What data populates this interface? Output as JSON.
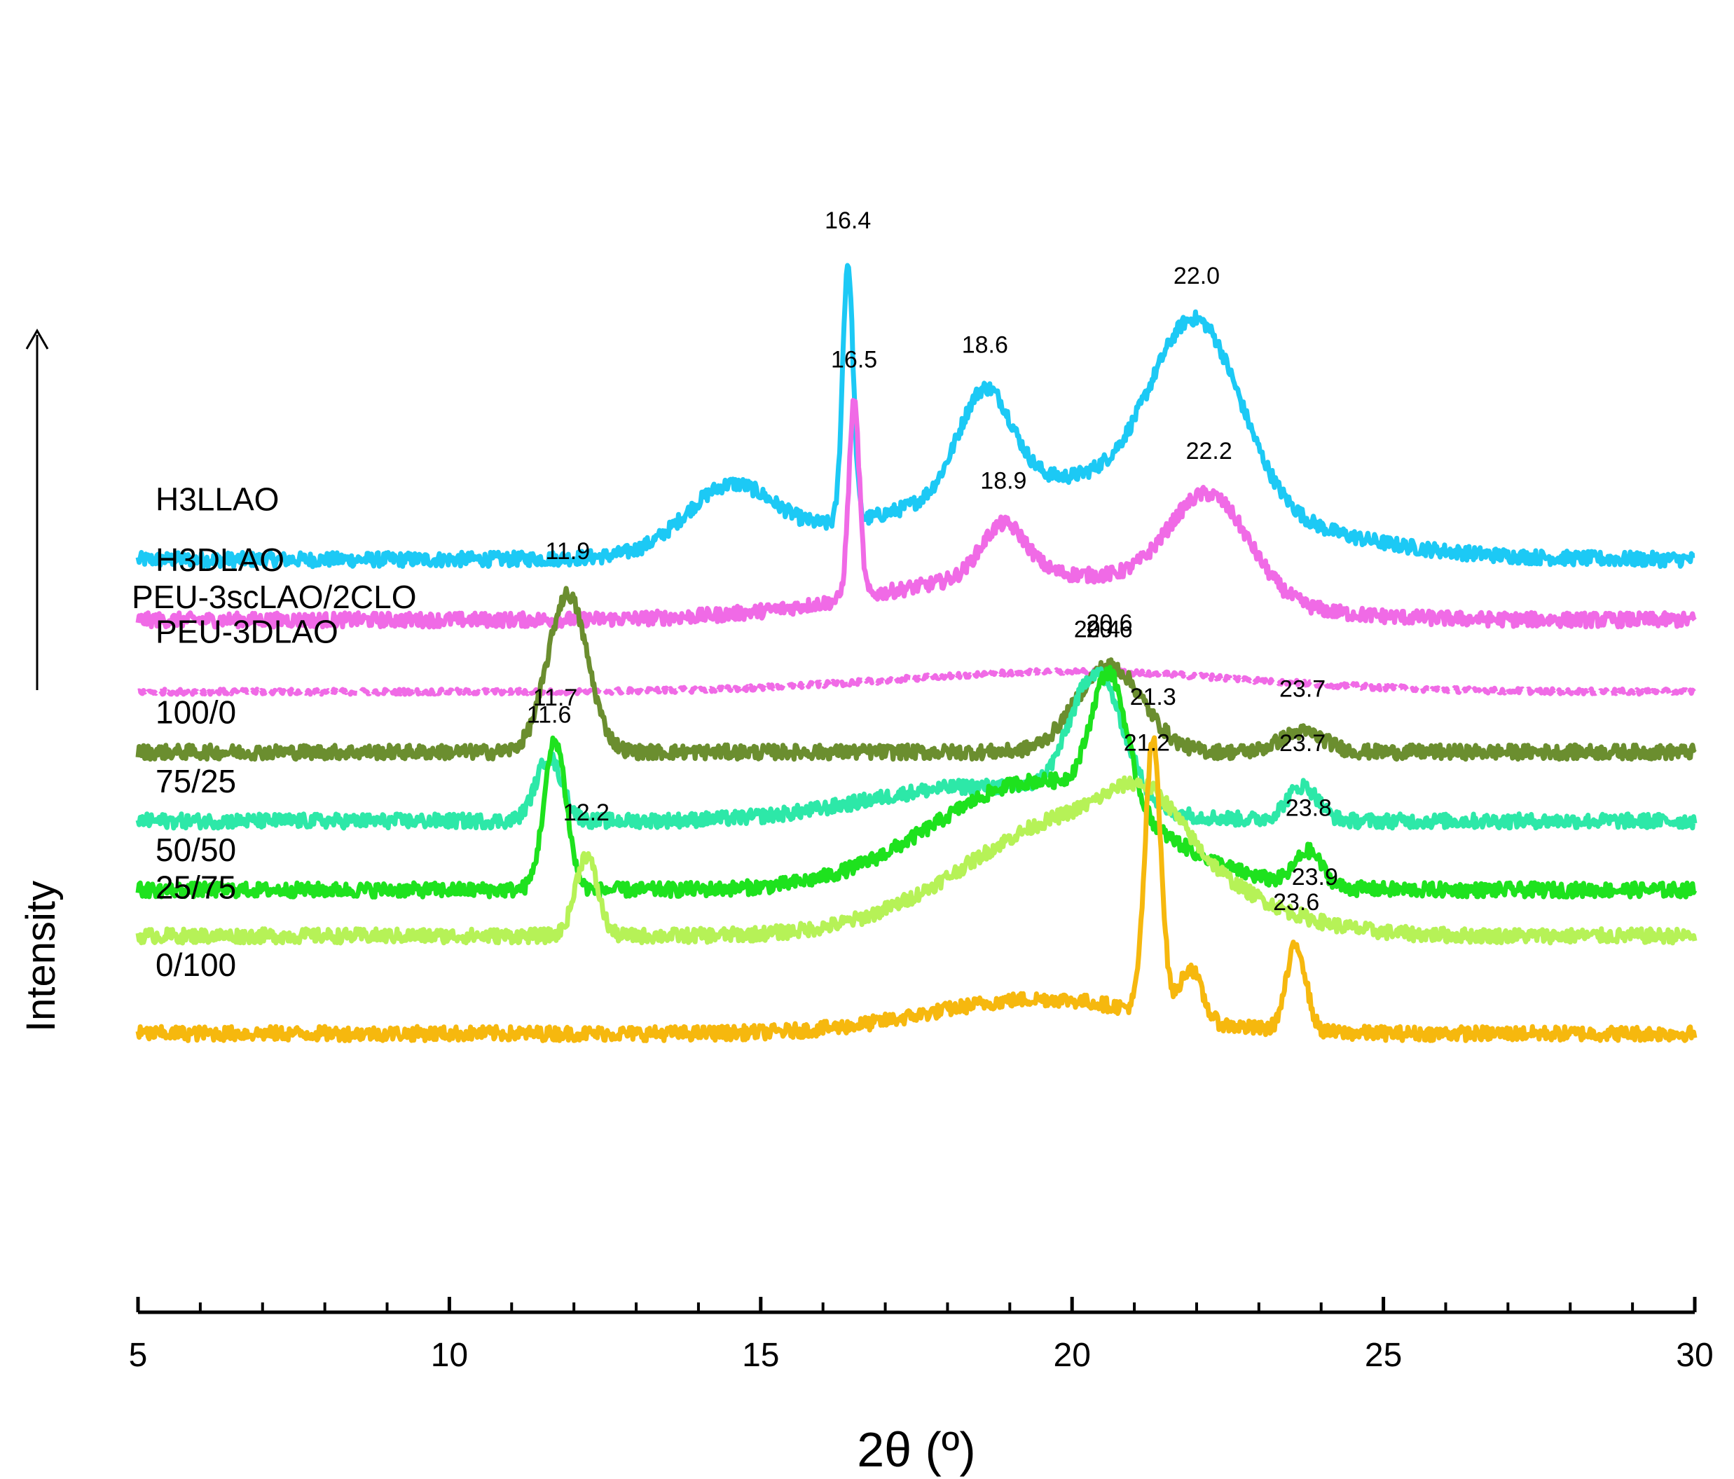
{
  "chart_data": {
    "type": "line",
    "title": "",
    "xlabel": "2θ (º)",
    "ylabel": "Intensity",
    "xlim": [
      5,
      30
    ],
    "x_ticks": [
      5,
      10,
      15,
      20,
      25,
      30
    ],
    "legend_header": "PEU-3scLAO/2CLO",
    "intensity_arrow": "up",
    "series": [
      {
        "name": "H3LLAO",
        "color": "#1cc9f5",
        "dashed": false,
        "baseline": 0.93,
        "peaks": [
          {
            "x": 16.4,
            "label": "16.4",
            "h": 0.9,
            "w": 0.12
          },
          {
            "x": 18.6,
            "label": "18.6",
            "h": 0.35,
            "w": 0.6
          },
          {
            "x": 22.0,
            "label": "22.0",
            "h": 0.62,
            "w": 1.0
          },
          {
            "x": 14.5,
            "label": "",
            "h": 0.22,
            "w": 1.0
          }
        ],
        "hump": {
          "center": 20.0,
          "h": 0.28,
          "w": 4.0
        }
      },
      {
        "name": "H3DLAO",
        "color": "#f06ae6",
        "dashed": false,
        "baseline": 0.72,
        "peaks": [
          {
            "x": 16.5,
            "label": "16.5",
            "h": 0.68,
            "w": 0.12
          },
          {
            "x": 18.9,
            "label": "18.9",
            "h": 0.18,
            "w": 0.5
          },
          {
            "x": 22.2,
            "label": "22.2",
            "h": 0.35,
            "w": 0.9
          }
        ],
        "hump": {
          "center": 19.5,
          "h": 0.16,
          "w": 3.5
        }
      },
      {
        "name": "PEU-3DLAO",
        "color": "#f06ae6",
        "dashed": true,
        "baseline": 0.47,
        "peaks": [],
        "hump": {
          "center": 20.0,
          "h": 0.07,
          "w": 4.0
        }
      },
      {
        "name": "100/0",
        "color": "#6b8e2f",
        "dashed": false,
        "baseline": 0.26,
        "peaks": [
          {
            "x": 11.9,
            "label": "11.9",
            "h": 0.55,
            "w": 0.45
          },
          {
            "x": 20.6,
            "label": "20.6",
            "h": 0.3,
            "w": 0.75
          },
          {
            "x": 23.7,
            "label": "23.7",
            "h": 0.07,
            "w": 0.5
          }
        ],
        "hump": {
          "center": 18.0,
          "h": 0.0,
          "w": 3.0
        }
      },
      {
        "name": "75/25",
        "color": "#2de8a8",
        "dashed": false,
        "baseline": 0.02,
        "peaks": [
          {
            "x": 11.6,
            "label": "11.6",
            "h": 0.22,
            "w": 0.3
          },
          {
            "x": 20.4,
            "label": "20.4",
            "h": 0.45,
            "w": 0.6
          },
          {
            "x": 23.7,
            "label": "23.7",
            "h": 0.12,
            "w": 0.35
          }
        ],
        "hump": {
          "center": 18.5,
          "h": 0.12,
          "w": 2.5
        }
      },
      {
        "name": "50/50",
        "color": "#1ee21e",
        "dashed": false,
        "baseline": -0.22,
        "peaks": [
          {
            "x": 11.7,
            "label": "11.7",
            "h": 0.52,
            "w": 0.25
          },
          {
            "x": 20.6,
            "label": "20.6",
            "h": 0.45,
            "w": 0.4
          },
          {
            "x": 23.8,
            "label": "23.8",
            "h": 0.12,
            "w": 0.3
          }
        ],
        "hump": {
          "center": 19.5,
          "h": 0.38,
          "w": 2.4
        }
      },
      {
        "name": "25/75",
        "color": "#b6f257",
        "dashed": false,
        "baseline": -0.38,
        "peaks": [
          {
            "x": 12.2,
            "label": "12.2",
            "h": 0.28,
            "w": 0.25
          },
          {
            "x": 21.2,
            "label": "21.2",
            "h": 0.16,
            "w": 0.8
          },
          {
            "x": 23.9,
            "label": "23.9",
            "h": 0.0,
            "w": 0.3
          }
        ],
        "hump": {
          "center": 20.2,
          "h": 0.42,
          "w": 2.6
        }
      },
      {
        "name": "0/100",
        "color": "#f6b80e",
        "dashed": false,
        "baseline": -0.72,
        "peaks": [
          {
            "x": 21.3,
            "label": "21.3",
            "h": 0.95,
            "w": 0.18
          },
          {
            "x": 23.6,
            "label": "23.6",
            "h": 0.3,
            "w": 0.22
          },
          {
            "x": 21.9,
            "label": "",
            "h": 0.18,
            "w": 0.25
          }
        ],
        "hump": {
          "center": 19.5,
          "h": 0.12,
          "w": 2.5
        }
      }
    ]
  }
}
